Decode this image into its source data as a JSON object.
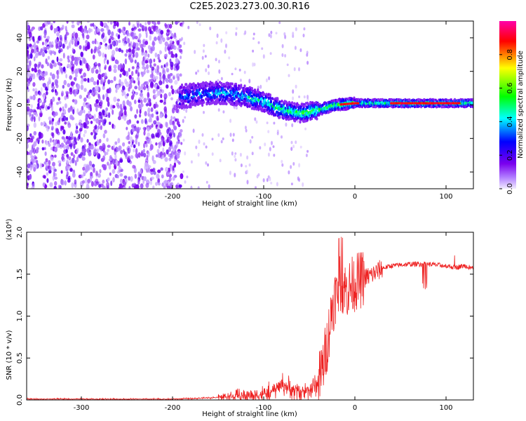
{
  "title": "C2E5.2023.273.00.30.R16",
  "colors": {
    "background": "#ffffff",
    "snr_line": "#ee2222",
    "spectrogram_low": "#7700ee",
    "spectrogram_high": "#ff2222"
  },
  "chart_data": [
    {
      "type": "heatmap",
      "xlabel": "Height of straight line (km)",
      "ylabel": "Frequency (Hz)",
      "xlim": [
        -360,
        130
      ],
      "ylim": [
        -50,
        50
      ],
      "xticks": [
        -300,
        -200,
        -100,
        0,
        100
      ],
      "yticks": [
        -40,
        -20,
        0,
        20,
        40
      ],
      "colorbar": {
        "label": "Normalized spectral amplitude",
        "range": [
          0.0,
          1.0
        ],
        "ticks": [
          "0.0",
          "0.2",
          "0.4",
          "0.6",
          "0.8"
        ],
        "colormap": [
          "#e8dcff",
          "#8800ee",
          "#0000ff",
          "#00ffff",
          "#00ff00",
          "#ffff00",
          "#ff0000",
          "#ff00aa"
        ]
      },
      "features": {
        "noise_region_x": [
          -360,
          -190
        ],
        "trace_center_hz": [
          [
            -190,
            5
          ],
          [
            -160,
            7
          ],
          [
            -140,
            7
          ],
          [
            -120,
            5
          ],
          [
            -100,
            2
          ],
          [
            -80,
            -3
          ],
          [
            -60,
            -5
          ],
          [
            -40,
            -3
          ],
          [
            -20,
            0
          ],
          [
            0,
            1
          ],
          [
            40,
            1
          ],
          [
            80,
            1
          ],
          [
            130,
            1
          ]
        ]
      }
    },
    {
      "type": "line",
      "xlabel": "Height of straight line (km)",
      "ylabel": "SNR (10 * v/v)",
      "yscale_label": "(x10⁴)",
      "xlim": [
        -360,
        130
      ],
      "ylim": [
        0,
        2.0
      ],
      "xticks": [
        -300,
        -200,
        -100,
        0,
        100
      ],
      "yticks": [
        "0.0",
        "0.5",
        "1.0",
        "1.5",
        "2.0"
      ],
      "series": [
        {
          "x": [
            -360,
            -300,
            -250,
            -200,
            -170,
            -150,
            -120,
            -100,
            -90,
            -80,
            -70,
            -60,
            -50,
            -40,
            -35,
            -30,
            -25,
            -20,
            -15,
            -10,
            -5,
            0,
            10,
            20,
            30,
            40,
            60,
            80,
            100,
            110,
            120,
            130
          ],
          "y": [
            0.01,
            0.01,
            0.01,
            0.01,
            0.02,
            0.03,
            0.05,
            0.07,
            0.1,
            0.2,
            0.12,
            0.1,
            0.12,
            0.2,
            0.4,
            0.7,
            1.1,
            1.3,
            1.4,
            1.3,
            1.35,
            1.4,
            1.45,
            1.5,
            1.57,
            1.6,
            1.62,
            1.62,
            1.6,
            1.58,
            1.6,
            1.57
          ]
        }
      ]
    }
  ]
}
